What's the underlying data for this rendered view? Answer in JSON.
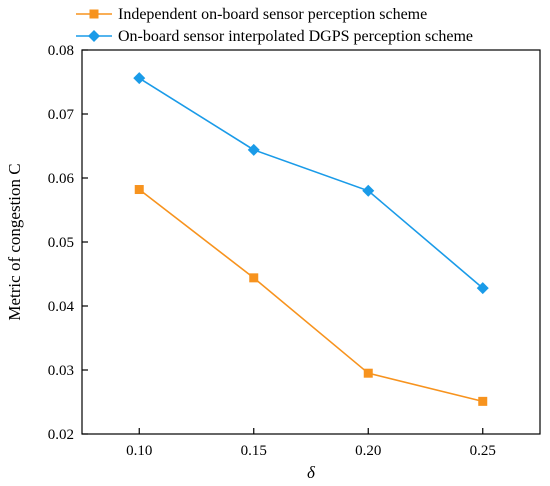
{
  "chart_data": {
    "type": "line",
    "x": [
      0.1,
      0.15,
      0.2,
      0.25
    ],
    "x_tick_labels": [
      "0.10",
      "0.15",
      "0.20",
      "0.25"
    ],
    "y_tick_labels": [
      "0.02",
      "0.03",
      "0.04",
      "0.05",
      "0.06",
      "0.07",
      "0.08"
    ],
    "y_ticks": [
      0.02,
      0.03,
      0.04,
      0.05,
      0.06,
      0.07,
      0.08
    ],
    "xlim": [
      0.075,
      0.275
    ],
    "ylim": [
      0.02,
      0.08
    ],
    "xlabel": "δ",
    "ylabel": "Metric of congestion C",
    "grid": false,
    "legend_position": "top",
    "series": [
      {
        "name": "Independent on-board sensor perception scheme",
        "values": [
          0.0582,
          0.0444,
          0.0295,
          0.0251
        ],
        "color": "#f7931e",
        "marker": "square"
      },
      {
        "name": "On-board sensor interpolated DGPS perception scheme",
        "values": [
          0.0756,
          0.0644,
          0.058,
          0.0428
        ],
        "color": "#1a9be8",
        "marker": "diamond"
      }
    ]
  }
}
